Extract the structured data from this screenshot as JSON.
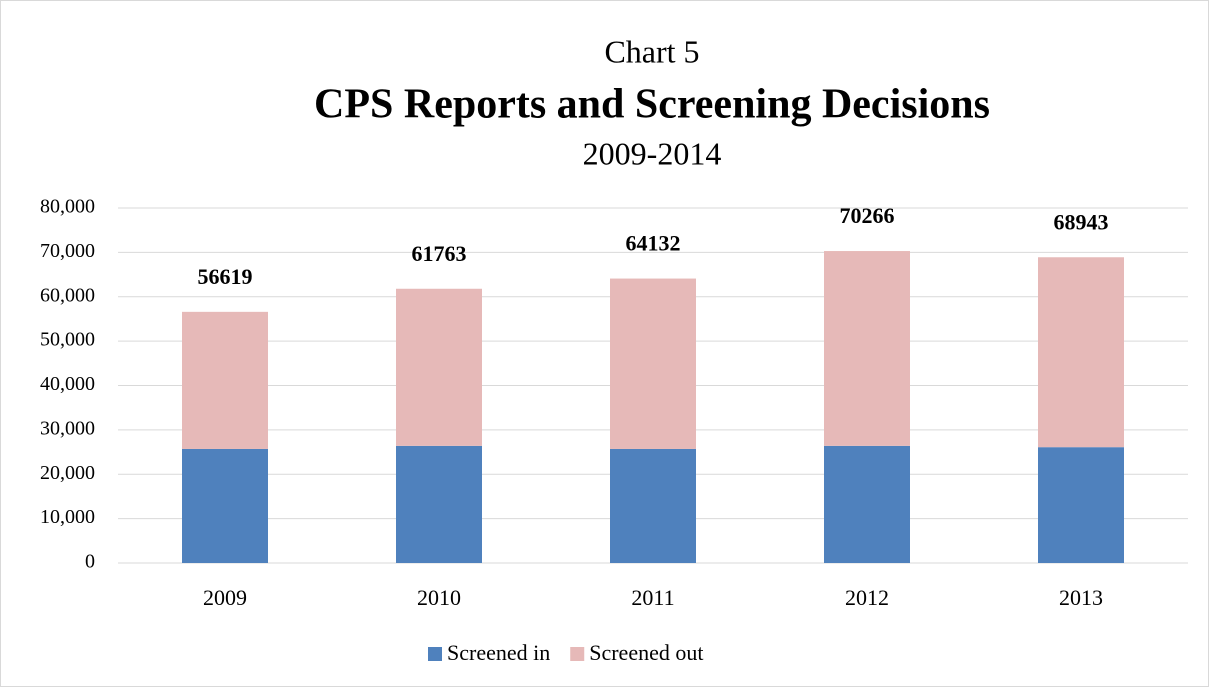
{
  "chart_data": {
    "type": "stacked_bar",
    "title": "Chart 5",
    "subtitle": "CPS Reports and Screening Decisions",
    "date_range": "2009-2014",
    "categories": [
      "2009",
      "2010",
      "2011",
      "2012",
      "2013"
    ],
    "series": [
      {
        "name": "Screened in",
        "color": "#4f81bd",
        "values": [
          25700,
          26400,
          25700,
          26400,
          26100
        ]
      },
      {
        "name": "Screened out",
        "color": "#e6b9b8",
        "values": [
          30900,
          35400,
          38400,
          43900,
          42800
        ]
      }
    ],
    "totals": [
      56619,
      61763,
      64132,
      70266,
      68943
    ],
    "ylim": [
      0,
      80000
    ],
    "yticks": [
      0,
      {
        "value": 10000,
        "label": "10,000"
      },
      {
        "value": 20000,
        "label": "20,000"
      },
      {
        "value": 30000,
        "label": "30,000"
      },
      {
        "value": 40000,
        "label": "40,000"
      },
      {
        "value": 50000,
        "label": "50,000"
      },
      {
        "value": 60000,
        "label": "60,000"
      },
      {
        "value": 70000,
        "label": "70,000"
      },
      {
        "value": 80000,
        "label": "80,000"
      }
    ],
    "grid": true,
    "legend": "bottom"
  }
}
